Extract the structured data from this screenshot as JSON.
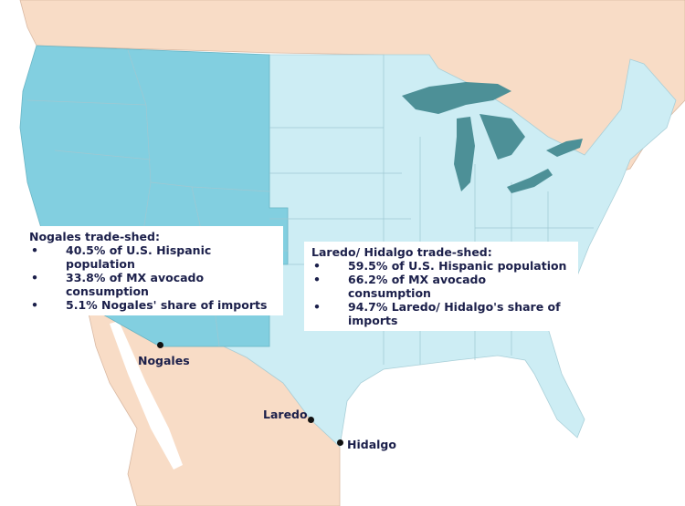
{
  "colors": {
    "west_tradeshed": "#82cfe0",
    "east_tradeshed": "#cdedf4",
    "foreign_land": "#f8dcc6",
    "lakes": "#4d9097",
    "water": "#ffffff",
    "text": "#1b1f4a"
  },
  "nogales": {
    "title": "Nogales trade-shed:",
    "bullets": [
      "40.5% of U.S. Hispanic population",
      "33.8% of MX avocado consumption",
      "5.1% Nogales' share of imports"
    ]
  },
  "laredo": {
    "title": "Laredo/ Hidalgo trade-shed:",
    "bullets": [
      "59.5% of U.S. Hispanic population",
      "66.2% of MX avocado consumption",
      "94.7% Laredo/ Hidalgo's share of imports"
    ]
  },
  "cities": {
    "nogales": "Nogales",
    "laredo": "Laredo",
    "hidalgo": "Hidalgo"
  }
}
